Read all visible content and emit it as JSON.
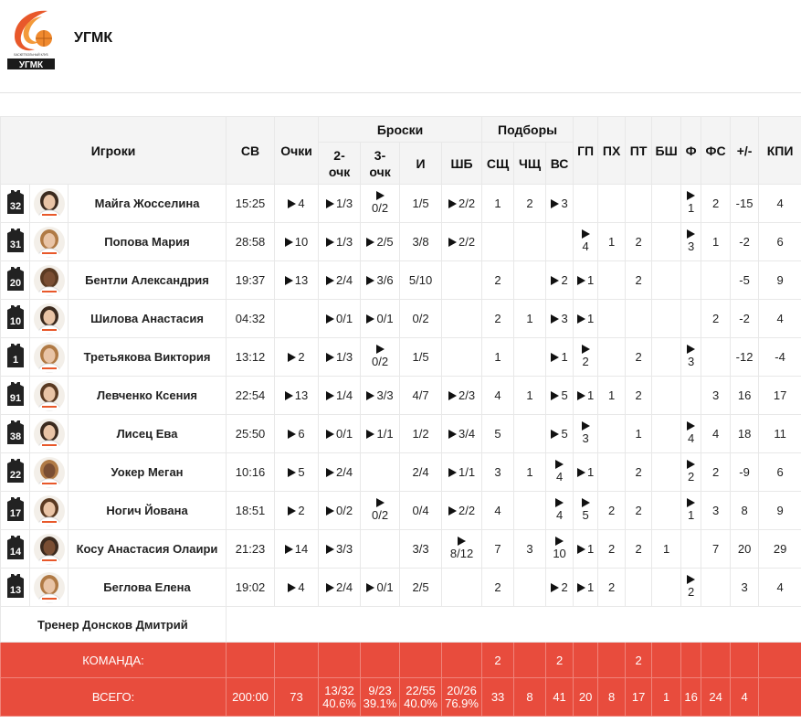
{
  "team": {
    "name": "УГМК",
    "logo_text": "УГМК",
    "logo_small": "БАСКЕТБОЛЬНЫЙ КЛУБ"
  },
  "headers": {
    "players": "Игроки",
    "sv": "СВ",
    "points": "Очки",
    "shots": "Броски",
    "rebounds": "Подборы",
    "two": "2-очк",
    "three": "3-очк",
    "i": "И",
    "shb": "ШБ",
    "sshch": "СЩ",
    "chshch": "ЧЩ",
    "vs": "ВС",
    "gp": "ГП",
    "ph": "ПХ",
    "pt": "ПТ",
    "bsh": "БШ",
    "f": "Ф",
    "fs": "ФС",
    "pm": "+/-",
    "kpi": "КПИ"
  },
  "colors": {
    "accent": "#e84c3d",
    "jersey": "#222222"
  },
  "players": [
    {
      "num": "32",
      "name": "Майга Жосселина",
      "sv": "15:25",
      "pts": "4",
      "two": "1/3",
      "three": "0/2",
      "i": "1/5",
      "shb": "2/2",
      "sshch": "1",
      "chshch": "2",
      "vs": "3",
      "gp": "",
      "ph": "",
      "pt": "",
      "bsh": "",
      "f": "1",
      "fs": "2",
      "pm": "-15",
      "kpi": "4"
    },
    {
      "num": "31",
      "name": "Попова Мария",
      "sv": "28:58",
      "pts": "10",
      "two": "1/3",
      "three": "2/5",
      "i": "3/8",
      "shb": "2/2",
      "sshch": "",
      "chshch": "",
      "vs": "",
      "gp": "4",
      "ph": "1",
      "pt": "2",
      "bsh": "",
      "f": "3",
      "fs": "1",
      "pm": "-2",
      "kpi": "6"
    },
    {
      "num": "20",
      "name": "Бентли Александрия",
      "sv": "19:37",
      "pts": "13",
      "two": "2/4",
      "three": "3/6",
      "i": "5/10",
      "shb": "",
      "sshch": "2",
      "chshch": "",
      "vs": "2",
      "gp": "1",
      "ph": "",
      "pt": "2",
      "bsh": "",
      "f": "",
      "fs": "",
      "pm": "-5",
      "kpi": "9"
    },
    {
      "num": "10",
      "name": "Шилова Анастасия",
      "sv": "04:32",
      "pts": "",
      "two": "0/1",
      "three": "0/1",
      "i": "0/2",
      "shb": "",
      "sshch": "2",
      "chshch": "1",
      "vs": "3",
      "gp": "1",
      "ph": "",
      "pt": "",
      "bsh": "",
      "f": "",
      "fs": "2",
      "pm": "-2",
      "kpi": "4"
    },
    {
      "num": "1",
      "name": "Третьякова Виктория",
      "sv": "13:12",
      "pts": "2",
      "two": "1/3",
      "three": "0/2",
      "i": "1/5",
      "shb": "",
      "sshch": "1",
      "chshch": "",
      "vs": "1",
      "gp": "2",
      "ph": "",
      "pt": "2",
      "bsh": "",
      "f": "3",
      "fs": "",
      "pm": "-12",
      "kpi": "-4"
    },
    {
      "num": "91",
      "name": "Левченко Ксения",
      "sv": "22:54",
      "pts": "13",
      "two": "1/4",
      "three": "3/3",
      "i": "4/7",
      "shb": "2/3",
      "sshch": "4",
      "chshch": "1",
      "vs": "5",
      "gp": "1",
      "ph": "1",
      "pt": "2",
      "bsh": "",
      "f": "",
      "fs": "3",
      "pm": "16",
      "kpi": "17"
    },
    {
      "num": "38",
      "name": "Лисец Ева",
      "sv": "25:50",
      "pts": "6",
      "two": "0/1",
      "three": "1/1",
      "i": "1/2",
      "shb": "3/4",
      "sshch": "5",
      "chshch": "",
      "vs": "5",
      "gp": "3",
      "ph": "",
      "pt": "1",
      "bsh": "",
      "f": "4",
      "fs": "4",
      "pm": "18",
      "kpi": "11"
    },
    {
      "num": "22",
      "name": "Уокер Меган",
      "sv": "10:16",
      "pts": "5",
      "two": "2/4",
      "three": "",
      "i": "2/4",
      "shb": "1/1",
      "sshch": "3",
      "chshch": "1",
      "vs": "4",
      "gp": "1",
      "ph": "",
      "pt": "2",
      "bsh": "",
      "f": "2",
      "fs": "2",
      "pm": "-9",
      "kpi": "6"
    },
    {
      "num": "17",
      "name": "Ногич Йована",
      "sv": "18:51",
      "pts": "2",
      "two": "0/2",
      "three": "0/2",
      "i": "0/4",
      "shb": "2/2",
      "sshch": "4",
      "chshch": "",
      "vs": "4",
      "gp": "5",
      "ph": "2",
      "pt": "2",
      "bsh": "",
      "f": "1",
      "fs": "3",
      "pm": "8",
      "kpi": "9"
    },
    {
      "num": "14",
      "name": "Косу Анастасия Олаири",
      "sv": "21:23",
      "pts": "14",
      "two": "3/3",
      "three": "",
      "i": "3/3",
      "shb": "8/12",
      "sshch": "7",
      "chshch": "3",
      "vs": "10",
      "gp": "1",
      "ph": "2",
      "pt": "2",
      "bsh": "1",
      "f": "",
      "fs": "7",
      "pm": "20",
      "kpi": "29"
    },
    {
      "num": "13",
      "name": "Беглова Елена",
      "sv": "19:02",
      "pts": "4",
      "two": "2/4",
      "three": "0/1",
      "i": "2/5",
      "shb": "",
      "sshch": "2",
      "chshch": "",
      "vs": "2",
      "gp": "1",
      "ph": "2",
      "pt": "",
      "bsh": "",
      "f": "2",
      "fs": "",
      "pm": "3",
      "kpi": "4"
    }
  ],
  "coach": "Тренер Донсков Дмитрий",
  "team_row": {
    "label": "КОМАНДА:",
    "sshch": "2",
    "vs": "2",
    "pt": "2"
  },
  "total_row": {
    "label": "ВСЕГО:",
    "sv": "200:00",
    "pts": "73",
    "two": "13/32",
    "two_pct": "40.6%",
    "three": "9/23",
    "three_pct": "39.1%",
    "i": "22/55",
    "i_pct": "40.0%",
    "shb": "20/26",
    "shb_pct": "76.9%",
    "sshch": "33",
    "chshch": "8",
    "vs": "41",
    "gp": "20",
    "ph": "8",
    "pt": "17",
    "bsh": "1",
    "f": "16",
    "fs": "24",
    "pm": "4"
  }
}
